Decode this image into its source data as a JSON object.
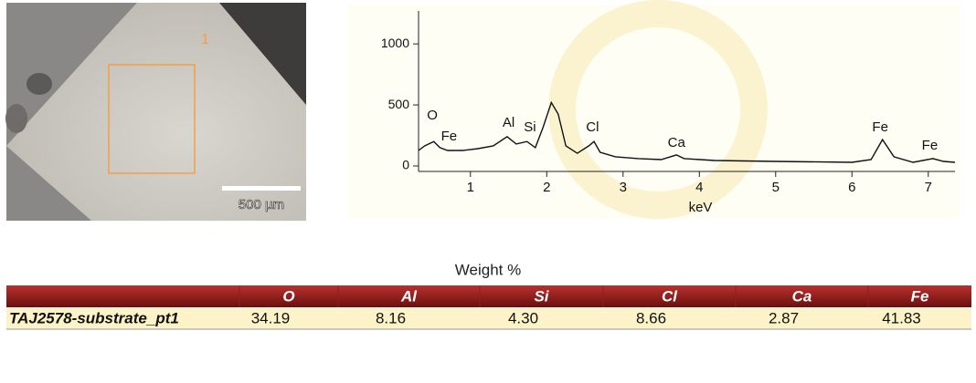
{
  "image": {
    "region_label": "1",
    "scale_label": "500 µm"
  },
  "chart_data": {
    "type": "line",
    "x_label": "keV",
    "color": "#111111",
    "xlim": [
      0.32,
      7.35
    ],
    "xticks": [
      1,
      2,
      3,
      4,
      5,
      6,
      7
    ],
    "ylim": [
      -45,
      1270
    ],
    "yticks": [
      0,
      500,
      1000
    ],
    "x": [
      0.32,
      0.4,
      0.52,
      0.6,
      0.7,
      0.9,
      1.1,
      1.3,
      1.48,
      1.6,
      1.74,
      1.85,
      1.95,
      2.06,
      2.15,
      2.25,
      2.4,
      2.55,
      2.62,
      2.7,
      2.9,
      3.2,
      3.5,
      3.7,
      3.8,
      4.2,
      5,
      6,
      6.25,
      6.4,
      6.55,
      6.8,
      7.06,
      7.2,
      7.35
    ],
    "values": [
      127,
      164,
      200,
      150,
      127,
      127,
      142,
      164,
      240,
      180,
      200,
      150,
      313,
      520,
      425,
      164,
      104,
      164,
      200,
      112,
      75,
      60,
      52,
      90,
      60,
      45,
      37,
      30,
      52,
      216,
      75,
      30,
      60,
      37,
      30
    ],
    "annotations": [
      {
        "text": "O",
        "x": 0.5,
        "y": 410
      },
      {
        "text": "Fe",
        "x": 0.72,
        "y": 240
      },
      {
        "text": "Al",
        "x": 1.5,
        "y": 350
      },
      {
        "text": "Si",
        "x": 1.78,
        "y": 313
      },
      {
        "text": "Cl",
        "x": 2.6,
        "y": 313
      },
      {
        "text": "Ca",
        "x": 3.7,
        "y": 187
      },
      {
        "text": "Fe",
        "x": 6.37,
        "y": 313
      },
      {
        "text": "Fe",
        "x": 7.02,
        "y": 164
      }
    ]
  },
  "table": {
    "title": "Weight %",
    "header": [
      "O",
      "Al",
      "Si",
      "Cl",
      "Ca",
      "Fe"
    ],
    "rows": [
      [
        "TAJ2578-substrate_pt1",
        "34.19",
        "8.16",
        "4.30",
        "8.66",
        "2.87",
        "41.83"
      ]
    ]
  }
}
